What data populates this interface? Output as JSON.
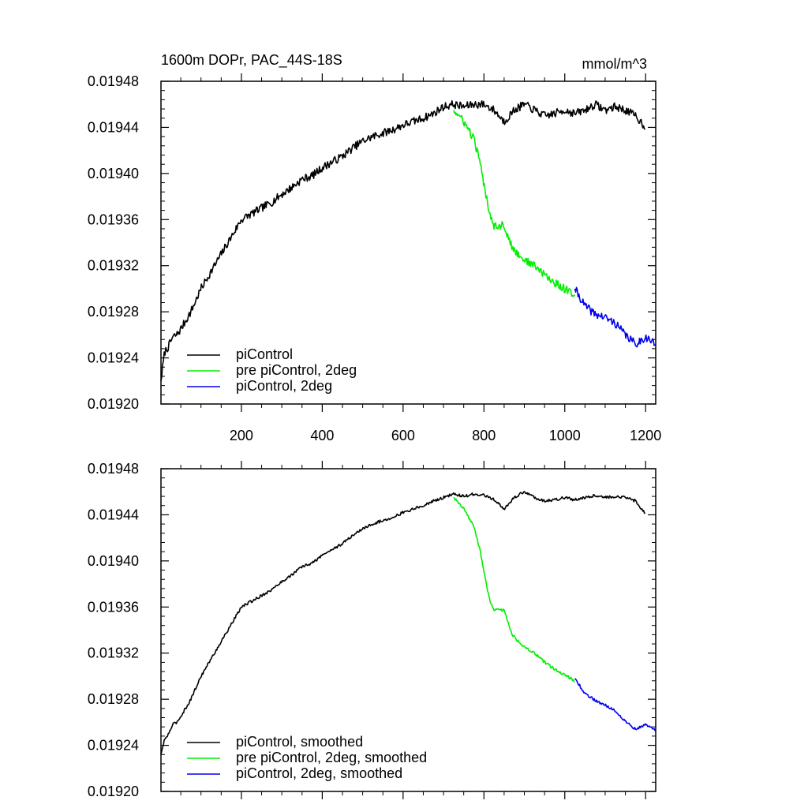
{
  "chart_data": [
    {
      "type": "line",
      "title": "1600m DOPr, PAC_44S-18S",
      "units": "mmol/m^3",
      "xlabel": "",
      "ylabel": "",
      "xlim": [
        1,
        1225
      ],
      "ylim": [
        0.0192,
        0.01948
      ],
      "xticks": [
        200,
        400,
        600,
        800,
        1000,
        1200
      ],
      "xtick_labels": [
        "200",
        "400",
        "600",
        "800",
        "1000",
        "1200"
      ],
      "yticks": [
        0.0192,
        0.01924,
        0.01928,
        0.01932,
        0.01936,
        0.0194,
        0.01944,
        0.01948
      ],
      "ytick_labels": [
        "0.01920",
        "0.01924",
        "0.01928",
        "0.01932",
        "0.01936",
        "0.01940",
        "0.01944",
        "0.01948"
      ],
      "legend_position": "bottom-left",
      "smoothed": false,
      "series": [
        {
          "name": "piControl",
          "color": "#000000",
          "x": [
            1,
            10,
            20,
            30,
            40,
            50,
            75,
            100,
            125,
            150,
            175,
            200,
            225,
            250,
            275,
            300,
            325,
            350,
            375,
            400,
            425,
            450,
            475,
            500,
            525,
            550,
            575,
            600,
            625,
            650,
            675,
            700,
            725,
            750,
            775,
            800,
            825,
            850,
            875,
            900,
            925,
            950,
            975,
            1000,
            1025,
            1050,
            1075,
            1100,
            1125,
            1150,
            1175,
            1200
          ],
          "values": [
            0.01922,
            0.019245,
            0.01925,
            0.019258,
            0.01926,
            0.019265,
            0.01928,
            0.0193,
            0.019315,
            0.01933,
            0.019345,
            0.01936,
            0.019365,
            0.01937,
            0.019375,
            0.019382,
            0.019388,
            0.019395,
            0.019398,
            0.019405,
            0.01941,
            0.019415,
            0.019422,
            0.019428,
            0.019432,
            0.019435,
            0.019438,
            0.019442,
            0.019445,
            0.019448,
            0.019452,
            0.019458,
            0.01946,
            0.019458,
            0.01946,
            0.01946,
            0.019455,
            0.019445,
            0.019455,
            0.01946,
            0.019455,
            0.01945,
            0.019452,
            0.019455,
            0.019452,
            0.019455,
            0.01946,
            0.019455,
            0.019458,
            0.019455,
            0.01945,
            0.01944
          ]
        },
        {
          "name": "pre piControl, 2deg",
          "color": "#00ee00",
          "x": [
            725,
            750,
            775,
            790,
            800,
            815,
            825,
            850,
            870,
            900,
            925,
            950,
            975,
            1000,
            1025
          ],
          "values": [
            0.019455,
            0.019445,
            0.01943,
            0.01941,
            0.01939,
            0.019365,
            0.019355,
            0.019355,
            0.019335,
            0.019325,
            0.01932,
            0.019312,
            0.019305,
            0.0193,
            0.019295
          ]
        },
        {
          "name": "piControl, 2deg",
          "color": "#0000ee",
          "x": [
            1025,
            1050,
            1075,
            1100,
            1125,
            1150,
            1175,
            1200,
            1225
          ],
          "values": [
            0.0193,
            0.019285,
            0.019278,
            0.019275,
            0.01927,
            0.01926,
            0.019252,
            0.019258,
            0.019252
          ]
        }
      ]
    },
    {
      "type": "line",
      "title": "",
      "units": "",
      "xlabel": "",
      "ylabel": "",
      "xlim": [
        1,
        1225
      ],
      "ylim": [
        0.0192,
        0.01948
      ],
      "xticks": [
        200,
        400,
        600,
        800,
        1000,
        1200
      ],
      "xtick_labels": [],
      "yticks": [
        0.0192,
        0.01924,
        0.01928,
        0.01932,
        0.01936,
        0.0194,
        0.01944,
        0.01948
      ],
      "ytick_labels": [
        "0.01920",
        "0.01924",
        "0.01928",
        "0.01932",
        "0.01936",
        "0.01940",
        "0.01944",
        "0.01948"
      ],
      "legend_position": "bottom-left",
      "smoothed": true,
      "series": [
        {
          "name": "piControl, smoothed",
          "color": "#000000",
          "x": [
            1,
            10,
            20,
            30,
            40,
            50,
            75,
            100,
            125,
            150,
            175,
            200,
            225,
            250,
            275,
            300,
            325,
            350,
            375,
            400,
            425,
            450,
            475,
            500,
            525,
            550,
            575,
            600,
            625,
            650,
            675,
            700,
            725,
            750,
            775,
            800,
            825,
            850,
            875,
            900,
            925,
            950,
            975,
            1000,
            1025,
            1050,
            1075,
            1100,
            1125,
            1150,
            1175,
            1200
          ],
          "values": [
            0.019232,
            0.019245,
            0.01925,
            0.019258,
            0.01926,
            0.019265,
            0.01928,
            0.0193,
            0.019315,
            0.01933,
            0.019345,
            0.01936,
            0.019365,
            0.01937,
            0.019375,
            0.019382,
            0.019388,
            0.019395,
            0.019398,
            0.019405,
            0.01941,
            0.019415,
            0.019422,
            0.019428,
            0.019432,
            0.019435,
            0.019438,
            0.019442,
            0.019445,
            0.019448,
            0.019452,
            0.019455,
            0.019458,
            0.019456,
            0.019458,
            0.019457,
            0.019453,
            0.019445,
            0.019455,
            0.01946,
            0.019455,
            0.019452,
            0.019453,
            0.019455,
            0.019453,
            0.019455,
            0.019457,
            0.019455,
            0.019456,
            0.019455,
            0.019452,
            0.019441
          ]
        },
        {
          "name": "pre piControl, 2deg, smoothed",
          "color": "#00ee00",
          "x": [
            725,
            750,
            775,
            790,
            800,
            815,
            825,
            850,
            870,
            900,
            925,
            950,
            975,
            1000,
            1025
          ],
          "values": [
            0.019455,
            0.019445,
            0.01943,
            0.01941,
            0.01939,
            0.019365,
            0.019358,
            0.019357,
            0.019336,
            0.019325,
            0.01932,
            0.019312,
            0.019306,
            0.019301,
            0.019296
          ]
        },
        {
          "name": "piControl, 2deg, smoothed",
          "color": "#0000ee",
          "x": [
            1025,
            1050,
            1075,
            1100,
            1125,
            1150,
            1175,
            1200,
            1225
          ],
          "values": [
            0.019298,
            0.019285,
            0.019279,
            0.019275,
            0.01927,
            0.019261,
            0.019254,
            0.019258,
            0.019253
          ]
        }
      ]
    }
  ]
}
